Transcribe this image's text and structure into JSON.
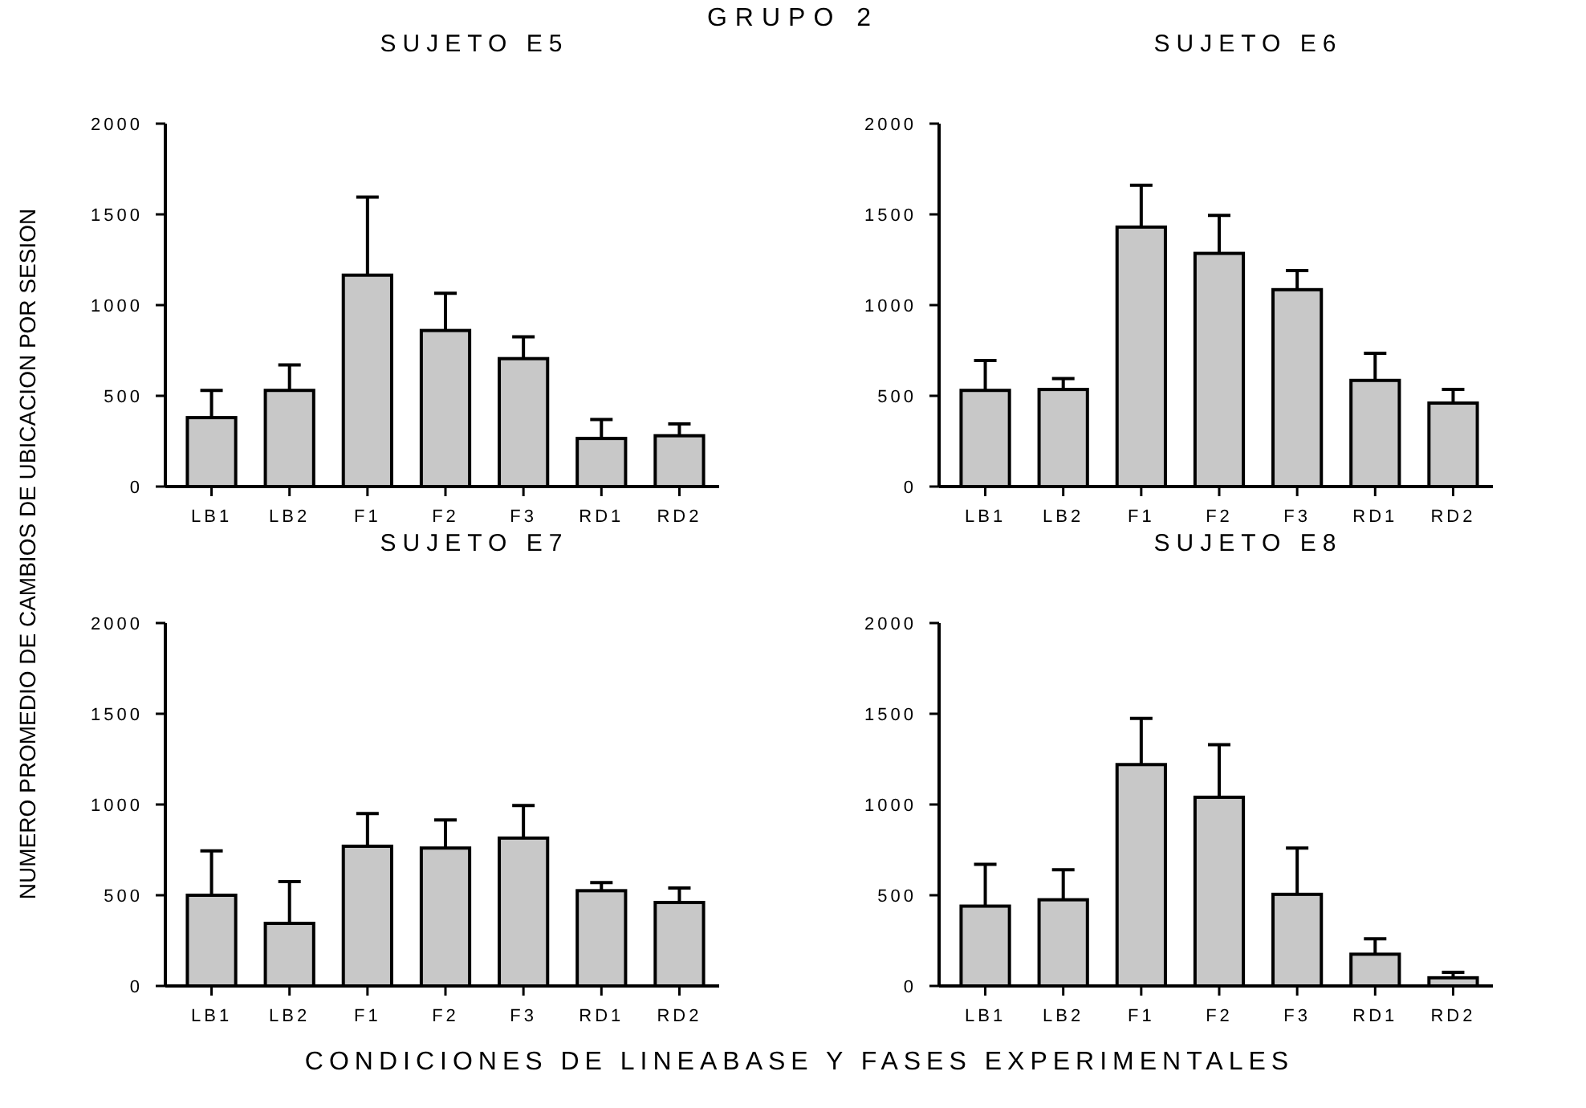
{
  "chart_data": [
    {
      "type": "bar",
      "title": "SUJETO E5",
      "annotations": [
        "GRUPO 2"
      ],
      "ylabel": "NUMERO PROMEDIO DE CAMBIOS DE UBICACION POR SESION",
      "categories": [
        "LB1",
        "LB2",
        "F1",
        "F2",
        "F3",
        "RD1",
        "RD2"
      ],
      "color": "#c8c8c8",
      "values": [
        380,
        530,
        1165,
        860,
        705,
        265,
        280
      ],
      "errors": [
        [
          380,
          530
        ],
        [
          530,
          670
        ],
        [
          1165,
          1595
        ],
        [
          860,
          1065
        ],
        [
          705,
          825
        ],
        [
          265,
          370
        ],
        [
          280,
          345
        ]
      ],
      "ylim": [
        0,
        2000
      ],
      "yticks": [
        0,
        500,
        1000,
        1500,
        2000
      ],
      "grid": false
    },
    {
      "type": "bar",
      "title": "SUJETO E6",
      "categories": [
        "LB1",
        "LB2",
        "F1",
        "F2",
        "F3",
        "RD1",
        "RD2"
      ],
      "color": "#c8c8c8",
      "values": [
        530,
        535,
        1430,
        1285,
        1085,
        585,
        460
      ],
      "errors": [
        [
          530,
          695
        ],
        [
          535,
          595
        ],
        [
          1430,
          1660
        ],
        [
          1285,
          1495
        ],
        [
          1085,
          1190
        ],
        [
          585,
          735
        ],
        [
          460,
          535
        ]
      ],
      "ylim": [
        0,
        2000
      ],
      "yticks": [
        0,
        500,
        1000,
        1500,
        2000
      ],
      "grid": false
    },
    {
      "type": "bar",
      "title": "SUJETO E7",
      "categories": [
        "LB1",
        "LB2",
        "F1",
        "F2",
        "F3",
        "RD1",
        "RD2"
      ],
      "color": "#c8c8c8",
      "values": [
        500,
        345,
        770,
        760,
        815,
        525,
        460
      ],
      "errors": [
        [
          500,
          745
        ],
        [
          345,
          575
        ],
        [
          770,
          950
        ],
        [
          760,
          915
        ],
        [
          815,
          995
        ],
        [
          525,
          570
        ],
        [
          460,
          540
        ]
      ],
      "ylim": [
        0,
        2000
      ],
      "yticks": [
        0,
        500,
        1000,
        1500,
        2000
      ],
      "grid": false
    },
    {
      "type": "bar",
      "title": "SUJETO E8",
      "xlabel": "CONDICIONES DE LINEABASE Y FASES EXPERIMENTALES",
      "categories": [
        "LB1",
        "LB2",
        "F1",
        "F2",
        "F3",
        "RD1",
        "RD2"
      ],
      "color": "#c8c8c8",
      "values": [
        440,
        475,
        1220,
        1040,
        505,
        175,
        45
      ],
      "errors": [
        [
          440,
          670
        ],
        [
          475,
          640
        ],
        [
          1220,
          1475
        ],
        [
          1040,
          1330
        ],
        [
          505,
          760
        ],
        [
          175,
          260
        ],
        [
          45,
          75
        ]
      ],
      "ylim": [
        0,
        2000
      ],
      "yticks": [
        0,
        500,
        1000,
        1500,
        2000
      ],
      "grid": false
    }
  ]
}
